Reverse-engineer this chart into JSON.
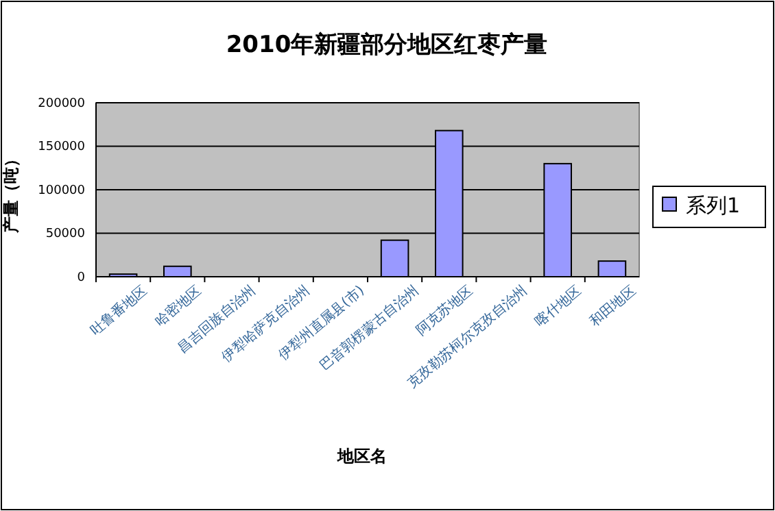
{
  "chart_data": {
    "type": "bar",
    "title": "2010年新疆部分地区红枣产量",
    "xlabel": "地区名",
    "ylabel": "产量（吨）",
    "categories": [
      "吐鲁番地区",
      "哈密地区",
      "昌吉回族自治州",
      "伊犁哈萨克自治州",
      "伊犁州直属县(市)",
      "巴音郭楞蒙古自治州",
      "阿克苏地区",
      "克孜勒苏柯尔克孜自治州",
      "喀什地区",
      "和田地区"
    ],
    "series": [
      {
        "name": "系列1",
        "color": "#9999ff",
        "values": [
          3000,
          12000,
          0,
          0,
          0,
          42000,
          168000,
          0,
          130000,
          18000
        ]
      }
    ],
    "ylim": [
      0,
      200000
    ],
    "yticks": [
      0,
      50000,
      100000,
      150000,
      200000
    ],
    "grid": "y",
    "legend": "right"
  }
}
